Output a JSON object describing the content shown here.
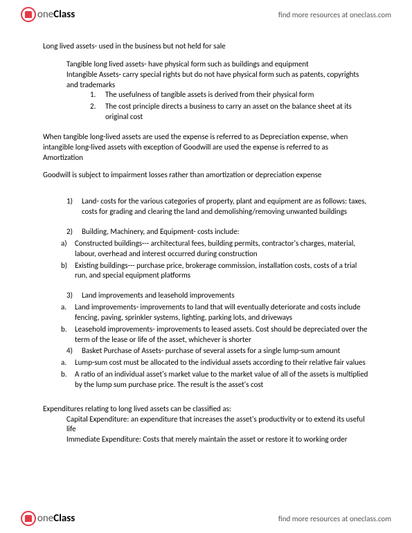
{
  "brand": {
    "part1": "one",
    "part2": "Class"
  },
  "header_link": "find more resources at oneclass.com",
  "footer_link": "find more resources at oneclass.com",
  "p1_lead": "Long lived assets- used in the business but not held for sale",
  "p1_a": "Tangible long lived assets- have physical form such as buildings and equipment",
  "p1_b": "Intangible Assets- carry special rights but do not have physical form such as patents, copyrights and trademarks",
  "p1_num1": "1.",
  "p1_num1_text": "The usefulness of tangible assets is derived from their physical form",
  "p1_num2": "2.",
  "p1_num2_text": "The cost principle directs a business to carry an asset on the balance sheet at its original cost",
  "p2": "When tangible long-lived assets are used the expense is referred to as Depreciation expense, when intangible long-lived assets with exception of Goodwill are used the expense is referred to as Amortization",
  "p3": "Goodwill is subject to impairment losses rather than amortization or depreciation expense",
  "list": [
    {
      "n": "1)",
      "t": "Land- costs for the various categories of property, plant and equipment are as follows: taxes, costs for grading and clearing the land and demolishing/removing unwanted buildings"
    },
    {
      "n": "2)",
      "t": "Building, Machinery, and Equipment- costs include:",
      "subs": [
        {
          "m": "a)",
          "t": "Constructed buildings--- architectural fees, building permits, contractor's charges, material, labour, overhead and interest occurred during construction"
        },
        {
          "m": "b)",
          "t": "Existing buildings--- purchase price, brokerage commission, installation costs, costs of a trial run, and special equipment platforms"
        }
      ]
    },
    {
      "n": "3)",
      "t": "Land improvements and leasehold improvements",
      "subs": [
        {
          "m": "a.",
          "t": "Land improvements- improvements to land that will eventually deteriorate and costs include fencing, paving, sprinkler systems, lighting, parking lots, and driveways"
        },
        {
          "m": "b.",
          "t": "Leasehold improvements- improvements to leased assets. Cost should be depreciated over the term of the lease or life of the asset, whichever is shorter"
        }
      ]
    },
    {
      "n": "4)",
      "t": "Basket Purchase of Assets- purchase of several assets for a single lump-sum amount",
      "subs": [
        {
          "m": "a.",
          "t": "Lump-sum cost must be allocated to the individual assets according to their relative fair values"
        },
        {
          "m": "b.",
          "t": "A ratio of an individual asset's market value to the market value of all of the assets is multiplied by the lump sum purchase price. The result is the asset's cost"
        }
      ]
    }
  ],
  "exp_lead": "Expenditures relating to long lived assets can be classified as:",
  "exp_a": "Capital Expenditure: an expenditure that increases the asset's productivity or to extend its useful life",
  "exp_b": "Immediate Expenditure: Costs that merely maintain the asset or restore it to working order"
}
